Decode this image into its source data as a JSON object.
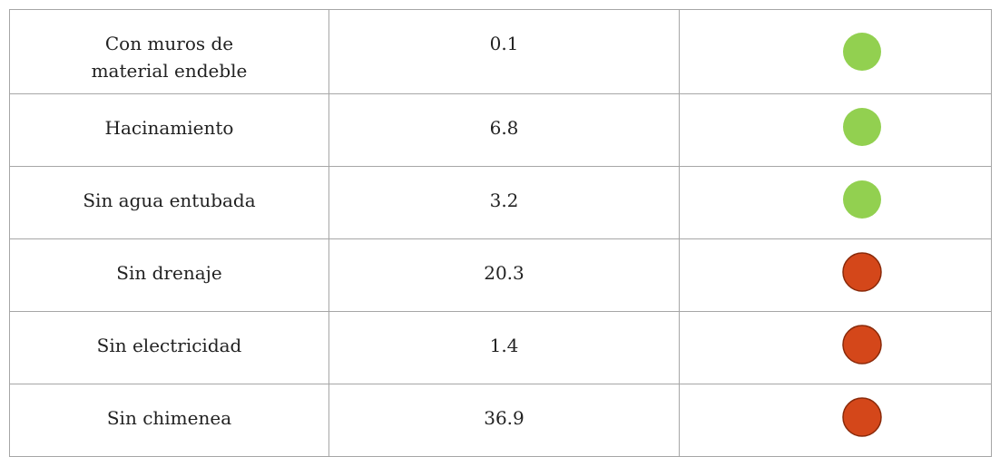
{
  "table": {
    "rows": [
      {
        "label": "Con muros de material endeble",
        "value": "0.1",
        "indicator": "#92d050"
      },
      {
        "label": "Hacinamiento",
        "value": "6.8",
        "indicator": "#92d050"
      },
      {
        "label": "Sin agua entubada",
        "value": "3.2",
        "indicator": "#92d050"
      },
      {
        "label": "Sin drenaje",
        "value": "20.3",
        "indicator": "#d4471a"
      },
      {
        "label": "Sin electricidad",
        "value": "1.4",
        "indicator": "#d4471a"
      },
      {
        "label": "Sin chimenea",
        "value": "36.9",
        "indicator": "#d4471a"
      }
    ]
  }
}
